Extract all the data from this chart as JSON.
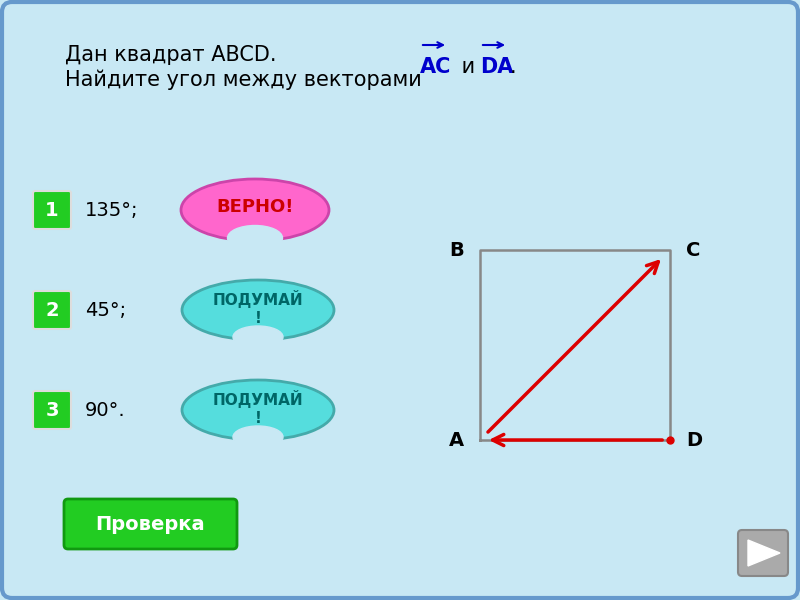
{
  "bg_color": "#c8e8f4",
  "border_color": "#6699cc",
  "title_line1": "Дан квадрат ABCD.",
  "title_line2": "Найдите угол между векторами",
  "vector1_label": "AC",
  "vector2_label": "DA",
  "vector_color": "#0000cc",
  "square_color": "#888888",
  "arrow_color": "#dd0000",
  "option1_text": "135",
  "option2_text": "45",
  "option3_text": "90",
  "correct_label": "ВЕРНО!",
  "wrong_label": "ПОДУМАЙ\n!",
  "button_label": "Проверка",
  "correct_color": "#ff66cc",
  "wrong_color": "#55dddd",
  "num_box_color": "#22cc22",
  "button_color": "#22cc22",
  "nav_color": "#aaaaaa"
}
